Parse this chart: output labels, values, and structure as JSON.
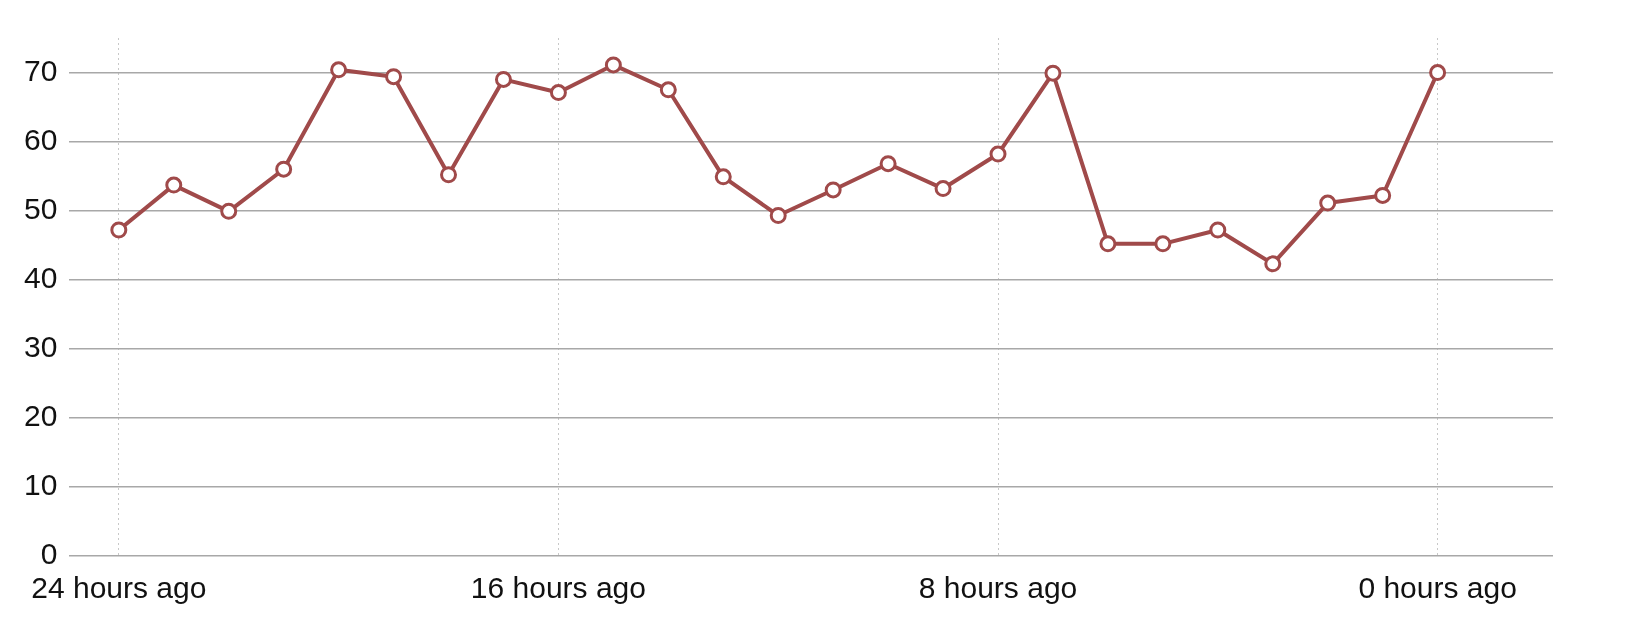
{
  "chart_data": {
    "type": "line",
    "x": [
      -24,
      -23,
      -22,
      -21,
      -20,
      -19,
      -18,
      -17,
      -16,
      -15,
      -14,
      -13,
      -12,
      -11,
      -10,
      -9,
      -8,
      -7,
      -6,
      -5,
      -4,
      -3,
      -2,
      -1,
      0
    ],
    "series": [
      {
        "color": "#a04a4a",
        "values": [
          47.2,
          53.7,
          49.9,
          56,
          70.4,
          69.4,
          55.2,
          69,
          67.1,
          71.1,
          67.5,
          54.9,
          49.3,
          53,
          56.8,
          53.2,
          58.2,
          69.9,
          45.2,
          45.2,
          47.2,
          42.3,
          51.1,
          52.2,
          70
        ]
      }
    ],
    "xlim": [
      -24.9,
      2.1
    ],
    "xticks": [
      {
        "value": -24,
        "label": "24 hours ago"
      },
      {
        "value": -16,
        "label": "16 hours ago"
      },
      {
        "value": -8,
        "label": "8 hours ago"
      },
      {
        "value": 0,
        "label": "0 hours ago"
      }
    ],
    "ylim": [
      0,
      75
    ],
    "yticks": [
      0,
      10,
      20,
      30,
      40,
      50,
      60,
      70
    ],
    "grid": true,
    "legend": false,
    "marker": "circle",
    "line_style": "solid"
  }
}
